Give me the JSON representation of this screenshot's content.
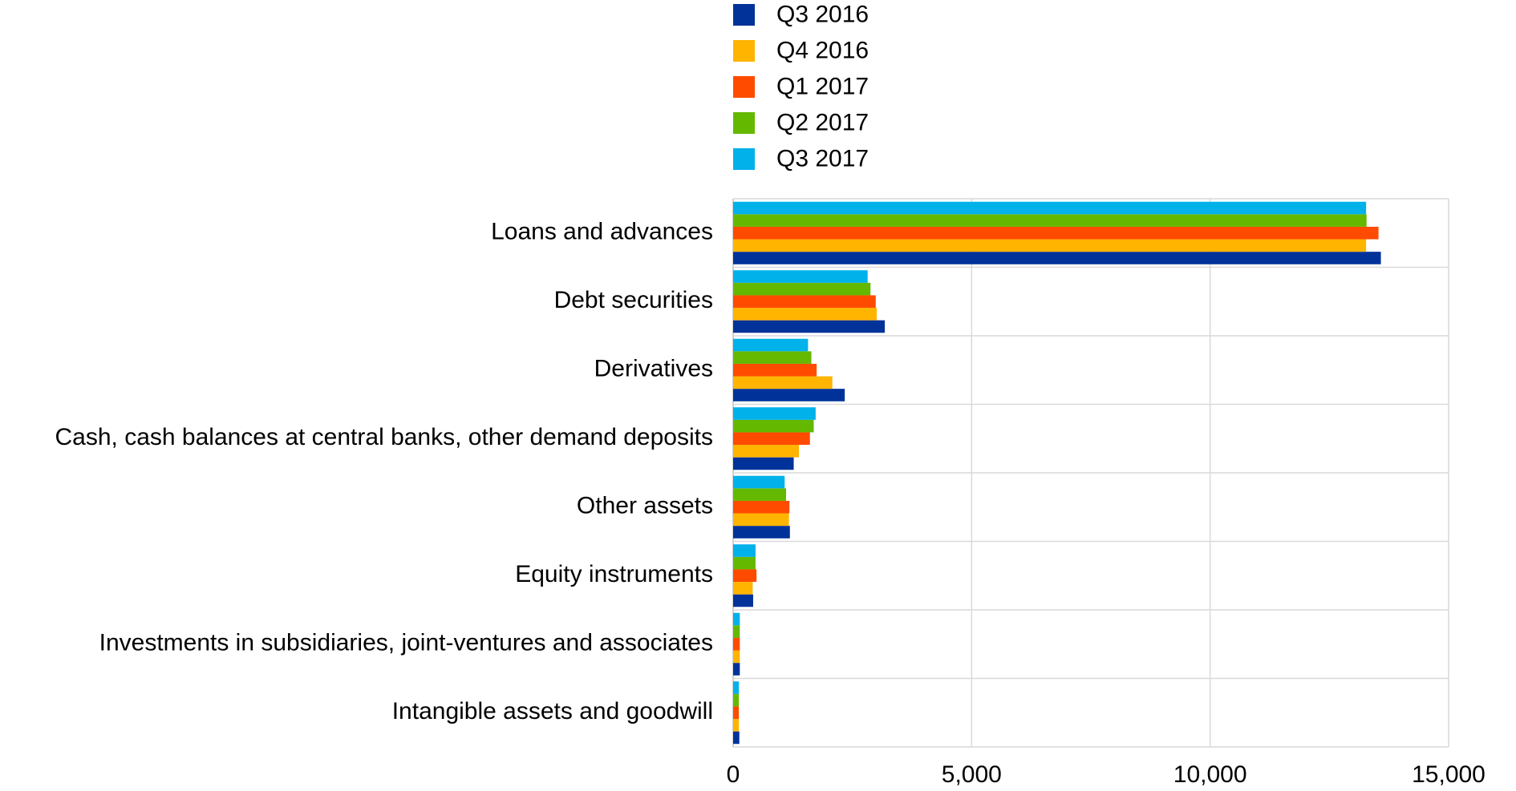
{
  "chart_data": {
    "type": "bar",
    "orientation": "horizontal",
    "title": "",
    "xlabel": "",
    "ylabel": "",
    "xlim": [
      0,
      15000
    ],
    "x_ticks": [
      0,
      5000,
      10000,
      15000
    ],
    "x_tick_labels": [
      "0",
      "5,000",
      "10,000",
      "15,000"
    ],
    "grid": true,
    "legend_position": "top",
    "categories": [
      "Loans and advances",
      "Debt securities",
      "Derivatives",
      "Cash, cash balances at central banks, other demand deposits",
      "Other assets",
      "Equity instruments",
      "Investments in subsidiaries, joint-ventures and associates",
      "Intangible assets and goodwill"
    ],
    "series": [
      {
        "name": "Q3 2016",
        "color": "#003299",
        "values": [
          13580,
          3180,
          2340,
          1270,
          1190,
          420,
          140,
          130
        ]
      },
      {
        "name": "Q4 2016",
        "color": "#FFB400",
        "values": [
          13270,
          3010,
          2080,
          1380,
          1170,
          410,
          140,
          120
        ]
      },
      {
        "name": "Q1 2017",
        "color": "#FF4B00",
        "values": [
          13530,
          2990,
          1750,
          1610,
          1180,
          490,
          140,
          120
        ]
      },
      {
        "name": "Q2 2017",
        "color": "#65B800",
        "values": [
          13280,
          2880,
          1640,
          1690,
          1110,
          470,
          140,
          120
        ]
      },
      {
        "name": "Q3 2017",
        "color": "#00B1EA",
        "values": [
          13270,
          2820,
          1570,
          1730,
          1080,
          470,
          140,
          120
        ]
      }
    ]
  }
}
